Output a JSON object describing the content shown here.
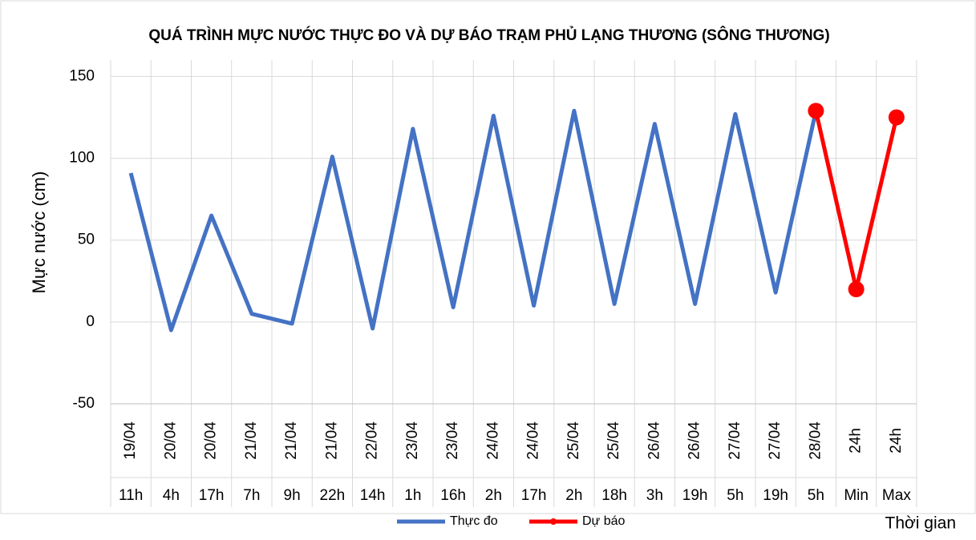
{
  "chart_data": {
    "type": "line",
    "title": "QUÁ TRÌNH MỰC NƯỚC THỰC ĐO VÀ DỰ BÁO TRẠM PHỦ LẠNG THƯƠNG (SÔNG THƯƠNG)",
    "y_label": "Mực nước (cm)",
    "x_label": "Thời gian",
    "categories": [
      [
        "19/04",
        "11h"
      ],
      [
        "20/04",
        "4h"
      ],
      [
        "20/04",
        "17h"
      ],
      [
        "21/04",
        "7h"
      ],
      [
        "21/04",
        "9h"
      ],
      [
        "21/04",
        "22h"
      ],
      [
        "22/04",
        "14h"
      ],
      [
        "23/04",
        "1h"
      ],
      [
        "23/04",
        "16h"
      ],
      [
        "24/04",
        "2h"
      ],
      [
        "24/04",
        "17h"
      ],
      [
        "25/04",
        "2h"
      ],
      [
        "25/04",
        "18h"
      ],
      [
        "26/04",
        "3h"
      ],
      [
        "26/04",
        "19h"
      ],
      [
        "27/04",
        "5h"
      ],
      [
        "27/04",
        "19h"
      ],
      [
        "28/04",
        "5h"
      ],
      [
        "24h",
        "Min"
      ],
      [
        "24h",
        "Max"
      ]
    ],
    "series": [
      {
        "name": "Thực đo",
        "color": "#4472c4",
        "markers": false,
        "values": [
          91,
          -5,
          65,
          5,
          -1,
          101,
          -4,
          118,
          9,
          126,
          10,
          129,
          11,
          121,
          11,
          127,
          18,
          129,
          null,
          null
        ]
      },
      {
        "name": "Dự báo",
        "color": "#ff0000",
        "markers": true,
        "values": [
          null,
          null,
          null,
          null,
          null,
          null,
          null,
          null,
          null,
          null,
          null,
          null,
          null,
          null,
          null,
          null,
          null,
          129,
          20,
          125
        ]
      }
    ],
    "ylim": [
      -50,
      160
    ],
    "yticks": [
      -50,
      0,
      50,
      100,
      150
    ],
    "grid": true,
    "legend": "bottom"
  }
}
